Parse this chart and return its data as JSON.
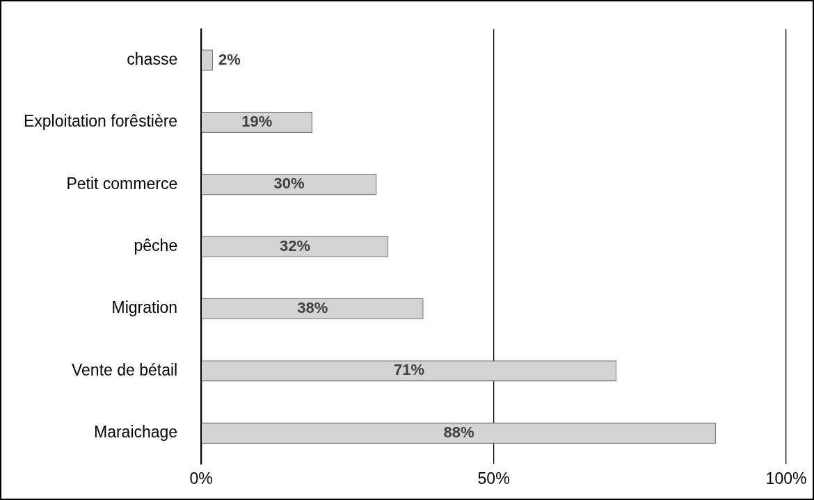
{
  "chart_data": {
    "type": "bar",
    "orientation": "horizontal",
    "categories": [
      "chasse",
      "Exploitation forêstière",
      "Petit commerce",
      "pêche",
      "Migration",
      "Vente de bétail",
      "Maraichage"
    ],
    "values": [
      2,
      19,
      30,
      32,
      38,
      71,
      88
    ],
    "value_labels": [
      "2%",
      "19%",
      "30%",
      "32%",
      "38%",
      "71%",
      "88%"
    ],
    "color": "#d4d4d4",
    "xlim": [
      0,
      100
    ],
    "xticks": [
      {
        "value": 0,
        "label": "0%"
      },
      {
        "value": 50,
        "label": "50%"
      },
      {
        "value": 100,
        "label": "100%"
      }
    ],
    "grid": "x",
    "legend": false
  }
}
